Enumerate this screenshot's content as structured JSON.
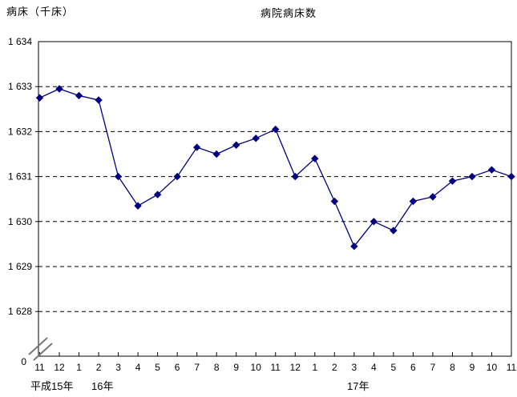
{
  "header": {
    "title": "病院病床数",
    "ylabel": "病床（千床）"
  },
  "chart_data": {
    "type": "line",
    "title": "病院病床数",
    "ylabel": "病床（千床）",
    "xlabel": "",
    "marker": "diamond",
    "series_color": "#000080",
    "grid": "horizontal-dashed",
    "legend": "none",
    "axis_break": true,
    "origin_label": "0",
    "ylim": [
      1628,
      1634
    ],
    "yticks": [
      {
        "value": 1634,
        "label": "1 634"
      },
      {
        "value": 1633,
        "label": "1 633"
      },
      {
        "value": 1632,
        "label": "1 632"
      },
      {
        "value": 1631,
        "label": "1 631"
      },
      {
        "value": 1630,
        "label": "1 630"
      },
      {
        "value": 1629,
        "label": "1 629"
      },
      {
        "value": 1628,
        "label": "1 628"
      }
    ],
    "categories": [
      "11",
      "12",
      "1",
      "2",
      "3",
      "4",
      "5",
      "6",
      "7",
      "8",
      "9",
      "10",
      "11",
      "12",
      "1",
      "2",
      "3",
      "4",
      "5",
      "6",
      "7",
      "8",
      "9",
      "10",
      "11"
    ],
    "year_labels": [
      "平成15年",
      "16年",
      "17年"
    ],
    "values": [
      1632.75,
      1632.95,
      1632.8,
      1632.7,
      1631.0,
      1630.35,
      1630.6,
      1631.0,
      1631.65,
      1631.5,
      1631.7,
      1631.85,
      1632.05,
      1631.0,
      1631.4,
      1630.45,
      1629.45,
      1630.0,
      1629.8,
      1630.45,
      1630.55,
      1630.9,
      1631.0,
      1631.15,
      1631.0
    ]
  }
}
